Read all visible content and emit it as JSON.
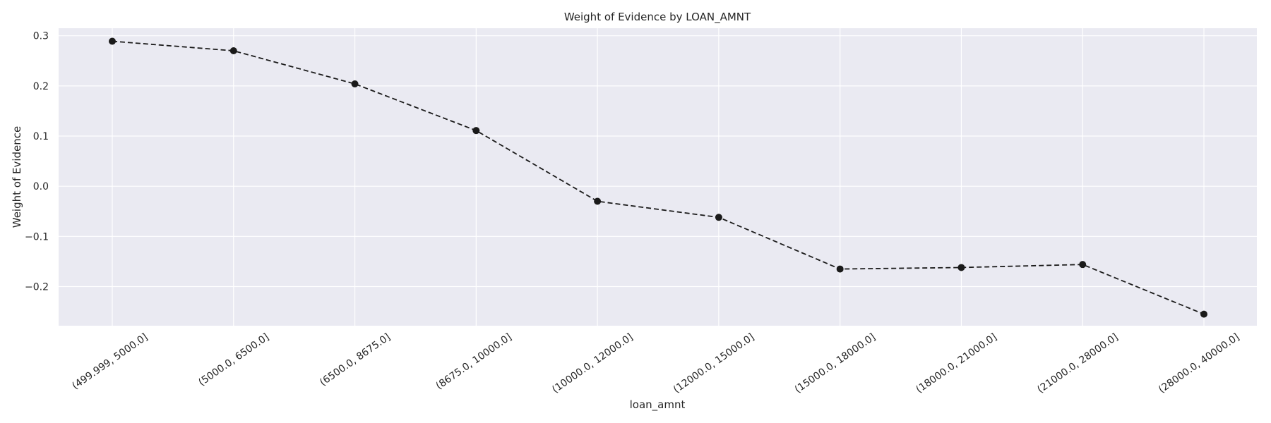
{
  "chart_data": {
    "type": "line",
    "title": "Weight of Evidence by LOAN_AMNT",
    "xlabel": "loan_amnt",
    "ylabel": "Weight of Evidence",
    "categories": [
      "(499.999, 5000.0]",
      "(5000.0, 6500.0]",
      "(6500.0, 8675.0]",
      "(8675.0, 10000.0]",
      "(10000.0, 12000.0]",
      "(12000.0, 15000.0]",
      "(15000.0, 18000.0]",
      "(18000.0, 21000.0]",
      "(21000.0, 28000.0]",
      "(28000.0, 40000.0]"
    ],
    "series": [
      {
        "values": [
          0.289,
          0.27,
          0.204,
          0.111,
          -0.03,
          -0.062,
          -0.165,
          -0.162,
          -0.156,
          -0.255
        ],
        "color": "#1a1a1a",
        "line_style": "dashed",
        "marker": "circle"
      }
    ],
    "yticks": [
      -0.2,
      -0.1,
      0.0,
      0.1,
      0.2,
      0.3
    ],
    "ytick_labels": [
      "−0.2",
      "−0.1",
      "0.0",
      "0.1",
      "0.2",
      "0.3"
    ],
    "ylim": [
      -0.278,
      0.315
    ],
    "grid": true,
    "background_color": "#eaeaf2",
    "grid_color": "#ffffff"
  }
}
